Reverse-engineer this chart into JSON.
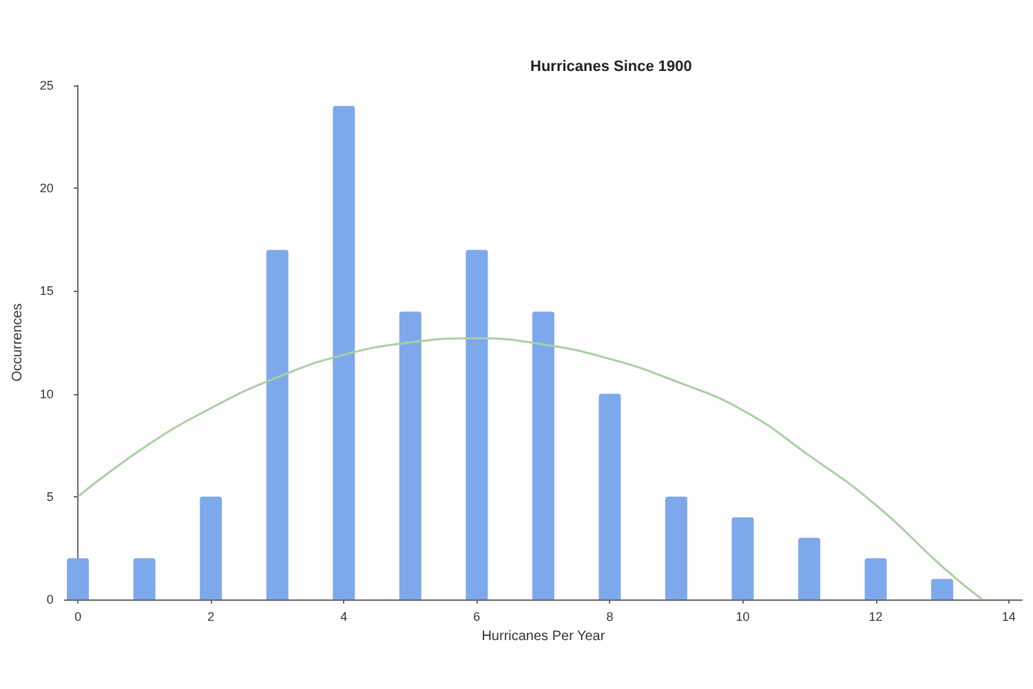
{
  "chart_data": {
    "type": "bar",
    "title": "Hurricanes Since 1900",
    "xlabel": "Hurricanes Per Year",
    "ylabel": "Occurrences",
    "xlim": [
      -0.2,
      14.2
    ],
    "xticks": [
      0,
      2,
      4,
      6,
      8,
      10,
      12,
      14
    ],
    "ylim": [
      0,
      25
    ],
    "yticks": [
      0,
      5,
      10,
      15,
      20,
      25
    ],
    "grid": false,
    "series": [
      {
        "color": "#7ea8ec",
        "x": [
          0,
          1,
          2,
          3,
          4,
          5,
          6,
          7,
          8,
          9,
          10,
          11,
          12,
          13
        ],
        "values": [
          2,
          2,
          5,
          17,
          24,
          14,
          17,
          14,
          10,
          5,
          4,
          3,
          2,
          1
        ]
      },
      {
        "type": "line",
        "color": "#a8d0a0",
        "marker": "none",
        "x": [
          0,
          1,
          2,
          3,
          4,
          5,
          6,
          7,
          8,
          9,
          10,
          11,
          12,
          13,
          13.6
        ],
        "values": [
          5.0,
          7.4,
          9.3,
          10.8,
          11.9,
          12.5,
          12.7,
          12.4,
          11.7,
          10.6,
          9.2,
          7.0,
          4.6,
          1.6,
          0
        ]
      }
    ]
  }
}
